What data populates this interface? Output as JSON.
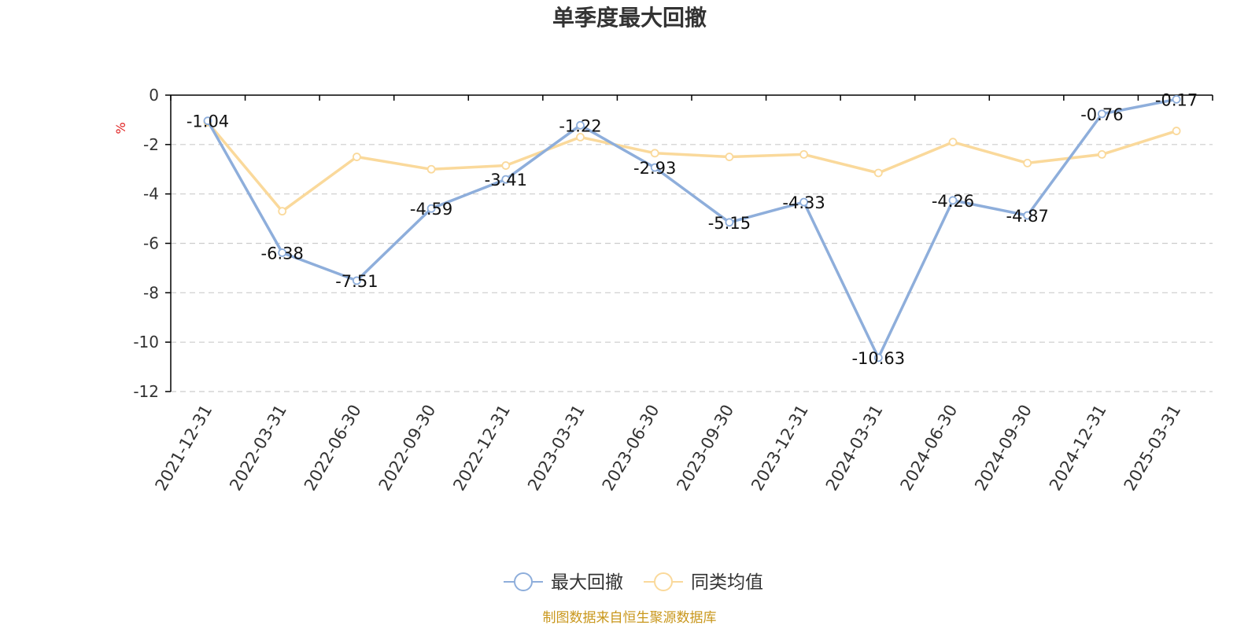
{
  "colors": {
    "series1": "#8eaedb",
    "series2": "#fad99b",
    "unit": "#e02020",
    "source": "#c9971c",
    "axis": "#000000",
    "grid": "#cccccc"
  },
  "chart_data": {
    "type": "line",
    "title": "单季度最大回撤",
    "ylabel": "%",
    "xlabel": "",
    "ylim": [
      -12,
      0
    ],
    "yticks": [
      0,
      -2,
      -4,
      -6,
      -8,
      -10,
      -12
    ],
    "grid": "horizontal-dashed",
    "legend_position": "bottom-center",
    "categories": [
      "2021-12-31",
      "2022-03-31",
      "2022-06-30",
      "2022-09-30",
      "2022-12-31",
      "2023-03-31",
      "2023-06-30",
      "2023-09-30",
      "2023-12-31",
      "2024-03-31",
      "2024-06-30",
      "2024-09-30",
      "2024-12-31",
      "2025-03-31"
    ],
    "series": [
      {
        "name": "最大回撤",
        "values": [
          -1.04,
          -6.38,
          -7.51,
          -4.59,
          -3.41,
          -1.22,
          -2.93,
          -5.15,
          -4.33,
          -10.63,
          -4.26,
          -4.87,
          -0.76,
          -0.17
        ],
        "labels": [
          "-1.04",
          "-6.38",
          "-7.51",
          "-4.59",
          "-3.41",
          "-1.22",
          "-2.93",
          "-5.15",
          "-4.33",
          "-10.63",
          "-4.26",
          "-4.87",
          "-0.76",
          "-0.17"
        ]
      },
      {
        "name": "同类均值",
        "values": [
          -1.1,
          -4.7,
          -2.5,
          -3.0,
          -2.85,
          -1.7,
          -2.35,
          -2.5,
          -2.4,
          -3.15,
          -1.9,
          -2.75,
          -2.4,
          -1.45
        ]
      }
    ]
  },
  "source": "制图数据来自恒生聚源数据库"
}
